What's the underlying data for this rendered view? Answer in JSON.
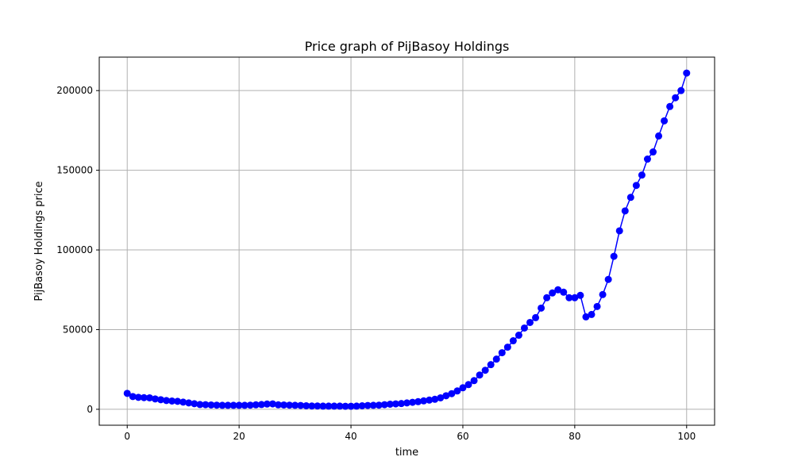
{
  "chart_data": {
    "type": "line",
    "title": "Price graph of PijBasoy Holdings",
    "xlabel": "time",
    "ylabel": "PijBasoy Holdings price",
    "xlim": [
      -5,
      105
    ],
    "ylim": [
      -10000,
      221000
    ],
    "x_ticks": [
      0,
      20,
      40,
      60,
      80,
      100
    ],
    "y_ticks": [
      0,
      50000,
      100000,
      150000,
      200000
    ],
    "grid": true,
    "colors": {
      "series": "#0000ff",
      "grid": "#b0b0b0",
      "axis": "#000000"
    },
    "series": [
      {
        "marker": "circle",
        "x": [
          0,
          1,
          2,
          3,
          4,
          5,
          6,
          7,
          8,
          9,
          10,
          11,
          12,
          13,
          14,
          15,
          16,
          17,
          18,
          19,
          20,
          21,
          22,
          23,
          24,
          25,
          26,
          27,
          28,
          29,
          30,
          31,
          32,
          33,
          34,
          35,
          36,
          37,
          38,
          39,
          40,
          41,
          42,
          43,
          44,
          45,
          46,
          47,
          48,
          49,
          50,
          51,
          52,
          53,
          54,
          55,
          56,
          57,
          58,
          59,
          60,
          61,
          62,
          63,
          64,
          65,
          66,
          67,
          68,
          69,
          70,
          71,
          72,
          73,
          74,
          75,
          76,
          77,
          78,
          79,
          80,
          81,
          82,
          83,
          84,
          85,
          86,
          87,
          88,
          89,
          90,
          91,
          92,
          93,
          94,
          95,
          96,
          97,
          98,
          99,
          100
        ],
        "values": [
          10000,
          8000,
          7500,
          7300,
          7200,
          6500,
          6000,
          5500,
          5200,
          5000,
          4500,
          4000,
          3500,
          3000,
          2900,
          2700,
          2600,
          2500,
          2500,
          2500,
          2500,
          2500,
          2600,
          2800,
          3000,
          3300,
          3400,
          2800,
          2700,
          2600,
          2500,
          2400,
          2200,
          2100,
          2100,
          2000,
          2000,
          2000,
          2000,
          1900,
          1900,
          2000,
          2200,
          2400,
          2500,
          2600,
          2900,
          3200,
          3400,
          3600,
          4000,
          4400,
          4800,
          5300,
          5800,
          6300,
          7200,
          8500,
          9800,
          11500,
          13500,
          15500,
          18000,
          21500,
          24500,
          28000,
          31500,
          35500,
          39000,
          43000,
          46500,
          51000,
          54500,
          57500,
          63500,
          70000,
          73000,
          75000,
          73500,
          70000,
          70000,
          71500,
          58000,
          59500,
          64500,
          72000,
          81500,
          96000,
          112000,
          124500,
          133000,
          140500,
          147000,
          157000,
          161500,
          171500,
          181000,
          190000,
          195500,
          200000,
          211000
        ]
      }
    ]
  }
}
